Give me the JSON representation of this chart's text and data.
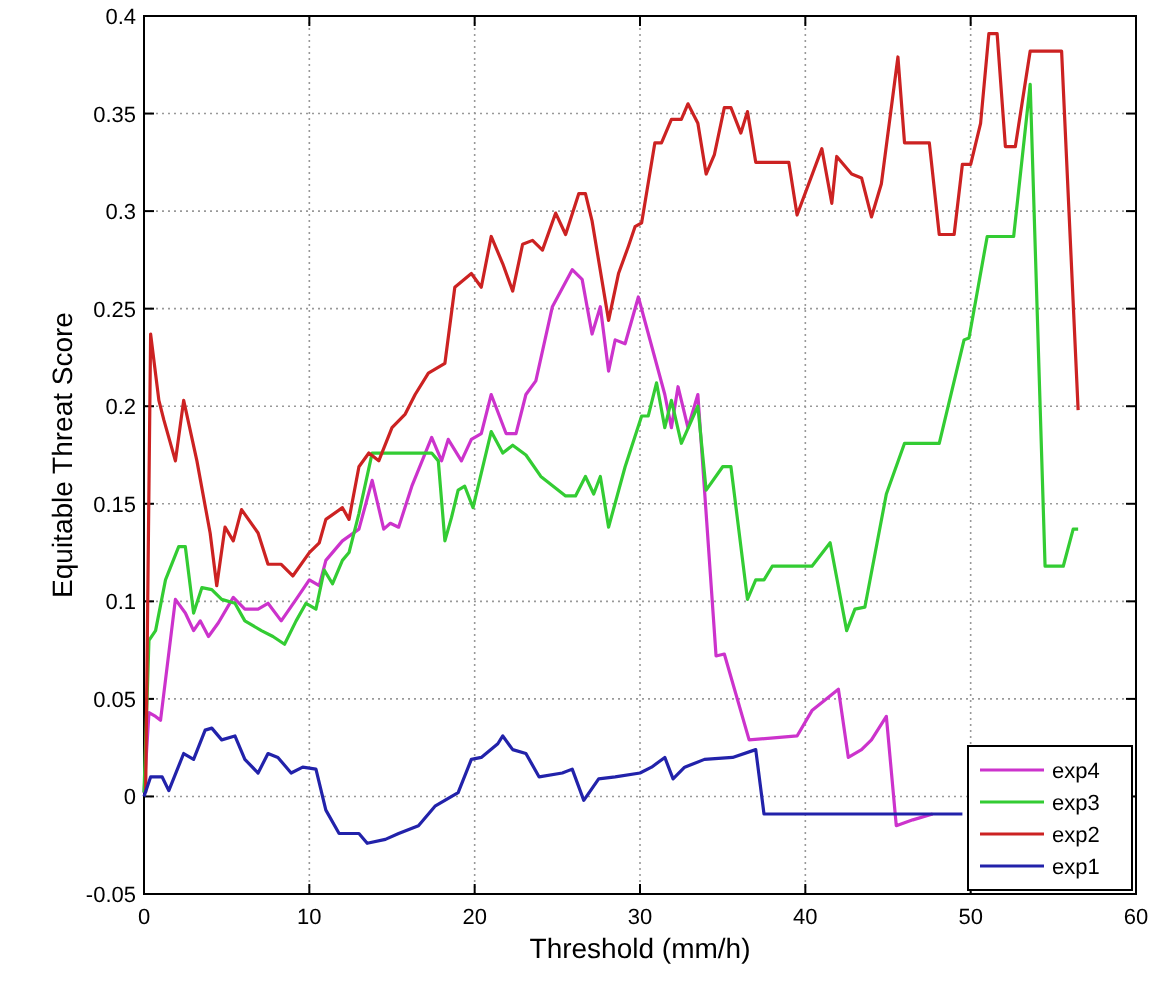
{
  "chart_data": {
    "type": "line",
    "xlabel": "Threshold (mm/h)",
    "ylabel": "Equitable Threat Score",
    "xlim": [
      0,
      60
    ],
    "xticks": [
      0,
      10,
      20,
      30,
      40,
      50,
      60
    ],
    "ylim": [
      -0.05,
      0.4
    ],
    "yticks": [
      -0.05,
      0,
      0.05,
      0.1,
      0.15,
      0.2,
      0.25,
      0.3,
      0.35,
      0.4
    ],
    "grid": true,
    "legend": "bottom right",
    "line_style": "solid",
    "marker": "none",
    "series": [
      {
        "name": "exp4",
        "color": "#cc33cc",
        "x": [
          0,
          0.3,
          0.7,
          1.0,
          1.9,
          2.5,
          3.0,
          3.4,
          3.9,
          4.5,
          5.4,
          6.1,
          6.9,
          7.5,
          8.3,
          9.2,
          10.0,
          10.6,
          11.0,
          12.0,
          13.0,
          13.8,
          14.5,
          14.9,
          15.4,
          16.2,
          17.4,
          18.0,
          18.4,
          19.2,
          19.8,
          20.4,
          21.0,
          21.9,
          22.5,
          23.1,
          23.7,
          24.7,
          25.9,
          26.5,
          27.1,
          27.6,
          28.1,
          28.5,
          29.1,
          29.9,
          31.5,
          31.9,
          32.3,
          32.9,
          33.5,
          34.6,
          35.1,
          36.6,
          39.5,
          40.4,
          42.0,
          42.6,
          43.4,
          44.0,
          44.9,
          45.5,
          46.5,
          47.7
        ],
        "values": [
          0.002,
          0.043,
          0.041,
          0.039,
          0.101,
          0.094,
          0.085,
          0.09,
          0.082,
          0.089,
          0.102,
          0.096,
          0.096,
          0.099,
          0.09,
          0.101,
          0.111,
          0.108,
          0.121,
          0.131,
          0.137,
          0.162,
          0.137,
          0.14,
          0.138,
          0.159,
          0.184,
          0.172,
          0.183,
          0.172,
          0.183,
          0.186,
          0.206,
          0.186,
          0.186,
          0.206,
          0.213,
          0.251,
          0.27,
          0.265,
          0.237,
          0.251,
          0.218,
          0.234,
          0.232,
          0.256,
          0.206,
          0.189,
          0.21,
          0.189,
          0.206,
          0.072,
          0.073,
          0.029,
          0.031,
          0.044,
          0.055,
          0.02,
          0.024,
          0.029,
          0.041,
          -0.015,
          -0.012,
          -0.009
        ]
      },
      {
        "name": "exp3",
        "color": "#33cc33",
        "x": [
          0,
          0.3,
          0.7,
          1.3,
          2.1,
          2.5,
          3.0,
          3.5,
          4.1,
          4.7,
          5.5,
          6.1,
          7.1,
          7.8,
          8.5,
          9.2,
          9.8,
          10.4,
          10.9,
          11.4,
          12.0,
          12.4,
          13.0,
          13.8,
          14.6,
          16.2,
          17.4,
          17.8,
          18.2,
          18.6,
          19.0,
          19.4,
          19.9,
          21.0,
          21.7,
          22.3,
          23.1,
          24.0,
          25.5,
          26.1,
          26.7,
          27.2,
          27.6,
          28.1,
          29.1,
          30.1,
          30.5,
          31.0,
          31.5,
          31.9,
          32.5,
          33.5,
          34.0,
          35.0,
          35.5,
          36.5,
          37.0,
          37.5,
          38.0,
          40.4,
          41.5,
          42.5,
          43.0,
          43.6,
          44.9,
          46.0,
          48.1,
          49.6,
          49.9,
          51.0,
          52.6,
          53.6,
          54.5,
          55.6,
          56.2,
          56.5
        ],
        "values": [
          0.002,
          0.08,
          0.085,
          0.111,
          0.128,
          0.128,
          0.094,
          0.107,
          0.106,
          0.101,
          0.099,
          0.09,
          0.085,
          0.082,
          0.078,
          0.09,
          0.099,
          0.096,
          0.116,
          0.109,
          0.121,
          0.125,
          0.145,
          0.176,
          0.176,
          0.176,
          0.176,
          0.172,
          0.131,
          0.143,
          0.157,
          0.159,
          0.148,
          0.187,
          0.176,
          0.18,
          0.175,
          0.164,
          0.154,
          0.154,
          0.164,
          0.155,
          0.164,
          0.138,
          0.169,
          0.195,
          0.195,
          0.212,
          0.189,
          0.203,
          0.181,
          0.2,
          0.157,
          0.169,
          0.169,
          0.101,
          0.111,
          0.111,
          0.118,
          0.118,
          0.13,
          0.085,
          0.096,
          0.097,
          0.155,
          0.181,
          0.181,
          0.234,
          0.235,
          0.287,
          0.287,
          0.365,
          0.118,
          0.118,
          0.137,
          0.137
        ]
      },
      {
        "name": "exp2",
        "color": "#cc2222",
        "x": [
          0.1,
          0.4,
          0.9,
          1.2,
          1.9,
          2.4,
          3.2,
          4.0,
          4.4,
          4.9,
          5.4,
          5.9,
          6.9,
          7.5,
          8.3,
          9.0,
          10.0,
          10.6,
          11.0,
          12.0,
          12.4,
          13.0,
          13.6,
          14.2,
          15.0,
          15.8,
          16.4,
          17.2,
          18.2,
          18.8,
          19.8,
          20.4,
          21.0,
          21.7,
          22.3,
          22.9,
          23.5,
          24.1,
          24.9,
          25.5,
          26.3,
          26.7,
          27.1,
          28.1,
          28.7,
          29.3,
          29.7,
          30.1,
          30.9,
          31.3,
          31.9,
          32.5,
          32.9,
          33.5,
          34.0,
          34.5,
          35.1,
          35.5,
          36.1,
          36.5,
          37.0,
          39.0,
          39.5,
          41.0,
          41.6,
          41.9,
          42.8,
          43.4,
          44.0,
          44.6,
          45.6,
          46.0,
          47.5,
          48.1,
          49.0,
          49.5,
          50.0,
          50.6,
          51.1,
          51.6,
          52.1,
          52.7,
          53.6,
          55.5,
          56.5
        ],
        "values": [
          0.002,
          0.237,
          0.203,
          0.193,
          0.172,
          0.203,
          0.172,
          0.135,
          0.108,
          0.138,
          0.131,
          0.147,
          0.135,
          0.119,
          0.119,
          0.113,
          0.125,
          0.13,
          0.142,
          0.148,
          0.142,
          0.169,
          0.176,
          0.172,
          0.189,
          0.196,
          0.206,
          0.217,
          0.222,
          0.261,
          0.268,
          0.261,
          0.287,
          0.273,
          0.259,
          0.283,
          0.285,
          0.28,
          0.299,
          0.288,
          0.309,
          0.309,
          0.295,
          0.244,
          0.268,
          0.282,
          0.292,
          0.294,
          0.335,
          0.335,
          0.347,
          0.347,
          0.355,
          0.345,
          0.319,
          0.329,
          0.353,
          0.353,
          0.34,
          0.351,
          0.325,
          0.325,
          0.298,
          0.332,
          0.304,
          0.328,
          0.319,
          0.317,
          0.297,
          0.314,
          0.379,
          0.335,
          0.335,
          0.288,
          0.288,
          0.324,
          0.324,
          0.345,
          0.391,
          0.391,
          0.333,
          0.333,
          0.382,
          0.382,
          0.198
        ]
      },
      {
        "name": "exp1",
        "color": "#2222aa",
        "x": [
          0,
          0.4,
          1.1,
          1.5,
          2.4,
          3.0,
          3.7,
          4.1,
          4.7,
          5.5,
          6.1,
          6.9,
          7.5,
          8.1,
          8.9,
          9.6,
          10.4,
          11.0,
          11.8,
          13.0,
          13.5,
          14.6,
          15.4,
          16.6,
          17.6,
          19.0,
          19.8,
          20.4,
          21.4,
          21.7,
          22.3,
          23.1,
          23.9,
          25.3,
          25.9,
          26.6,
          27.5,
          28.5,
          30.0,
          30.7,
          31.5,
          32.0,
          32.7,
          33.9,
          35.6,
          37.0,
          37.5,
          49.5
        ],
        "values": [
          0,
          0.01,
          0.01,
          0.003,
          0.022,
          0.019,
          0.034,
          0.035,
          0.029,
          0.031,
          0.019,
          0.012,
          0.022,
          0.02,
          0.012,
          0.015,
          0.014,
          -0.007,
          -0.019,
          -0.019,
          -0.024,
          -0.022,
          -0.019,
          -0.015,
          -0.005,
          0.002,
          0.019,
          0.02,
          0.027,
          0.031,
          0.024,
          0.022,
          0.01,
          0.012,
          0.014,
          -0.002,
          0.009,
          0.01,
          0.012,
          0.015,
          0.02,
          0.009,
          0.015,
          0.019,
          0.02,
          0.024,
          -0.009,
          -0.009
        ]
      }
    ]
  }
}
